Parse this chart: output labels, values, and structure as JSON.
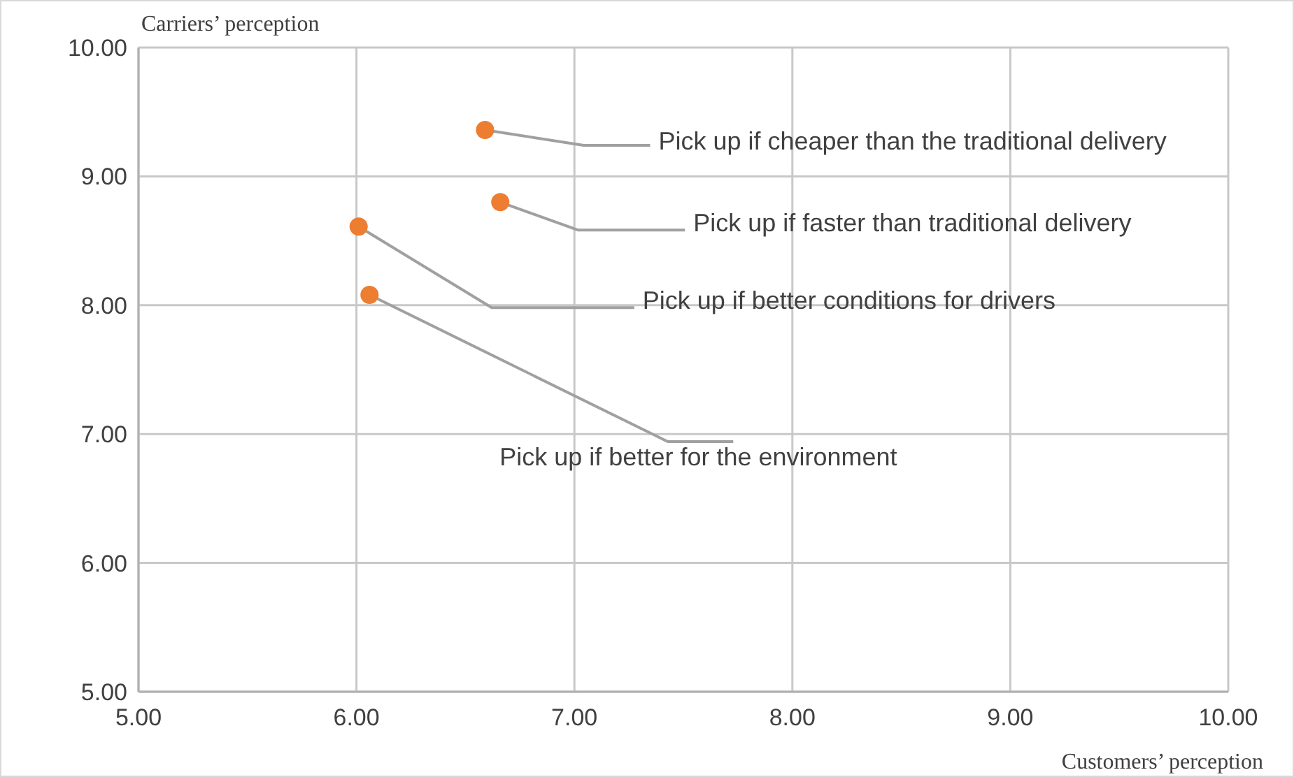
{
  "chart_data": {
    "type": "scatter",
    "xlabel": "Customers’ perception",
    "ylabel": "Carriers’ perception",
    "series": [
      {
        "color": "#ed7d31",
        "x": [
          6.59,
          6.66,
          6.01,
          6.06
        ],
        "values": [
          9.36,
          8.8,
          8.61,
          8.08
        ]
      }
    ],
    "marker": "circle",
    "grid": true,
    "xlim": [
      5,
      10
    ],
    "ylim": [
      5,
      10
    ],
    "xticks": [
      {
        "value": 5,
        "label": "5.00"
      },
      {
        "value": 6,
        "label": "6.00"
      },
      {
        "value": 7,
        "label": "7.00"
      },
      {
        "value": 8,
        "label": "8.00"
      },
      {
        "value": 9,
        "label": "9.00"
      },
      {
        "value": 10,
        "label": "10.00"
      }
    ],
    "yticks": [
      {
        "value": 5,
        "label": "5.00"
      },
      {
        "value": 6,
        "label": "6.00"
      },
      {
        "value": 7,
        "label": "7.00"
      },
      {
        "value": 8,
        "label": "8.00"
      },
      {
        "value": 9,
        "label": "9.00"
      },
      {
        "value": 10,
        "label": "10.00"
      }
    ],
    "annotations": [
      {
        "text": "Pick up if cheaper than the traditional delivery",
        "x": 6.59,
        "y": 9.36
      },
      {
        "text": "Pick up if faster than traditional delivery",
        "x": 6.66,
        "y": 8.8
      },
      {
        "text": "Pick up if better conditions for drivers",
        "x": 6.01,
        "y": 8.61
      },
      {
        "text": "Pick up if better for the environment",
        "x": 6.06,
        "y": 8.08
      }
    ]
  }
}
